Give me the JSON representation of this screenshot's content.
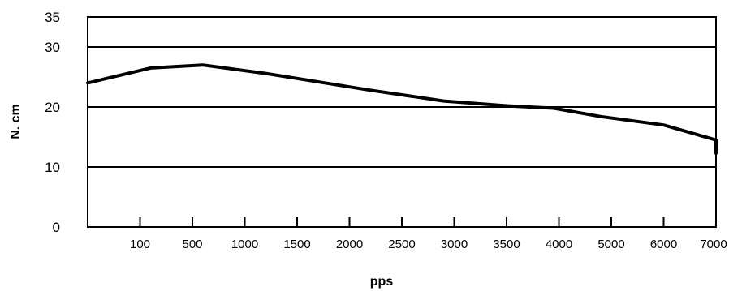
{
  "chart_data": {
    "type": "line",
    "title": "",
    "xlabel": "pps",
    "ylabel": "N. cm",
    "x_categories": [
      "",
      "100",
      "500",
      "1000",
      "1500",
      "2000",
      "2500",
      "3000",
      "3500",
      "4000",
      "5000",
      "6000",
      "7000"
    ],
    "y_ticks": [
      0,
      10,
      20,
      30,
      35
    ],
    "ylim": [
      0,
      35
    ],
    "grid": "horizontal",
    "series": [
      {
        "values": [
          [
            0,
            24
          ],
          [
            1.2,
            26.5
          ],
          [
            2.2,
            27
          ],
          [
            3.4,
            25.6
          ],
          [
            5.4,
            22.8
          ],
          [
            6.8,
            21
          ],
          [
            8.0,
            20.2
          ],
          [
            8.9,
            19.8
          ],
          [
            9.8,
            18.4
          ],
          [
            11.0,
            17
          ],
          [
            12.0,
            14.5
          ],
          [
            12.0,
            14.5
          ],
          [
            12.0,
            12.3
          ]
        ]
      }
    ]
  }
}
